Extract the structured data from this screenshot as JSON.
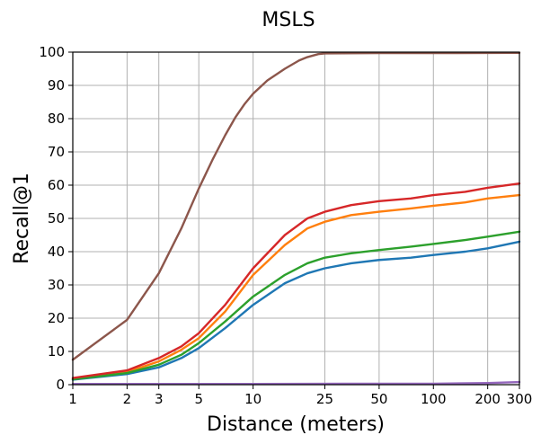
{
  "chart_data": {
    "type": "line",
    "title": "MSLS",
    "xlabel": "Distance (meters)",
    "ylabel": "Recall@1",
    "xscale": "log",
    "xlim": [
      1,
      300
    ],
    "ylim": [
      0,
      100
    ],
    "grid": true,
    "x_ticks": [
      1,
      2,
      3,
      5,
      10,
      25,
      50,
      100,
      200,
      300
    ],
    "x_tick_labels": [
      "1",
      "2",
      "3",
      "5",
      "10",
      "25",
      "50",
      "100",
      "200",
      "300"
    ],
    "y_ticks": [
      0,
      10,
      20,
      30,
      40,
      50,
      60,
      70,
      80,
      90,
      100
    ],
    "y_tick_labels": [
      "0",
      "10",
      "20",
      "30",
      "40",
      "50",
      "60",
      "70",
      "80",
      "90",
      "100"
    ],
    "series": [
      {
        "name": "blue",
        "color": "#1f77b4",
        "points": [
          [
            1,
            1.5
          ],
          [
            2,
            3.2
          ],
          [
            3,
            5.2
          ],
          [
            4,
            8
          ],
          [
            5,
            11
          ],
          [
            7,
            17
          ],
          [
            10,
            24
          ],
          [
            15,
            30.5
          ],
          [
            20,
            33.5
          ],
          [
            25,
            35
          ],
          [
            35,
            36.5
          ],
          [
            50,
            37.5
          ],
          [
            75,
            38.2
          ],
          [
            100,
            39
          ],
          [
            150,
            40
          ],
          [
            200,
            41
          ],
          [
            300,
            43
          ]
        ]
      },
      {
        "name": "orange",
        "color": "#ff7f0e",
        "points": [
          [
            1,
            1.8
          ],
          [
            2,
            3.8
          ],
          [
            3,
            7
          ],
          [
            4,
            10.5
          ],
          [
            5,
            14
          ],
          [
            7,
            22
          ],
          [
            10,
            33
          ],
          [
            15,
            42
          ],
          [
            20,
            47
          ],
          [
            25,
            49
          ],
          [
            35,
            51
          ],
          [
            50,
            52
          ],
          [
            75,
            53
          ],
          [
            100,
            53.8
          ],
          [
            150,
            54.8
          ],
          [
            200,
            56
          ],
          [
            300,
            57
          ]
        ]
      },
      {
        "name": "green",
        "color": "#2ca02c",
        "points": [
          [
            1,
            1.6
          ],
          [
            2,
            3.5
          ],
          [
            3,
            6
          ],
          [
            4,
            9
          ],
          [
            5,
            12.5
          ],
          [
            7,
            19
          ],
          [
            10,
            26.5
          ],
          [
            15,
            33
          ],
          [
            20,
            36.5
          ],
          [
            25,
            38.2
          ],
          [
            35,
            39.5
          ],
          [
            50,
            40.5
          ],
          [
            75,
            41.5
          ],
          [
            100,
            42.3
          ],
          [
            150,
            43.5
          ],
          [
            200,
            44.5
          ],
          [
            300,
            46
          ]
        ]
      },
      {
        "name": "red",
        "color": "#d62728",
        "points": [
          [
            1,
            2
          ],
          [
            2,
            4.3
          ],
          [
            3,
            8
          ],
          [
            4,
            11.5
          ],
          [
            5,
            15.5
          ],
          [
            7,
            24
          ],
          [
            10,
            35
          ],
          [
            15,
            45
          ],
          [
            20,
            50
          ],
          [
            25,
            52
          ],
          [
            35,
            54
          ],
          [
            50,
            55.2
          ],
          [
            75,
            56
          ],
          [
            100,
            57
          ],
          [
            150,
            58
          ],
          [
            200,
            59.2
          ],
          [
            300,
            60.5
          ]
        ]
      },
      {
        "name": "purple",
        "color": "#9467bd",
        "points": [
          [
            1,
            0.2
          ],
          [
            5,
            0.2
          ],
          [
            10,
            0.2
          ],
          [
            50,
            0.3
          ],
          [
            100,
            0.3
          ],
          [
            200,
            0.5
          ],
          [
            300,
            0.8
          ]
        ]
      },
      {
        "name": "brown",
        "color": "#8c564b",
        "points": [
          [
            1,
            7.5
          ],
          [
            2,
            19.5
          ],
          [
            3,
            33.5
          ],
          [
            4,
            47
          ],
          [
            5,
            59
          ],
          [
            6,
            68
          ],
          [
            7,
            75
          ],
          [
            8,
            80.5
          ],
          [
            9,
            84.5
          ],
          [
            10,
            87.5
          ],
          [
            12,
            91.5
          ],
          [
            15,
            95
          ],
          [
            18,
            97.5
          ],
          [
            20,
            98.5
          ],
          [
            23,
            99.4
          ],
          [
            25,
            99.6
          ],
          [
            50,
            99.7
          ],
          [
            100,
            99.7
          ],
          [
            300,
            99.8
          ]
        ]
      }
    ]
  }
}
